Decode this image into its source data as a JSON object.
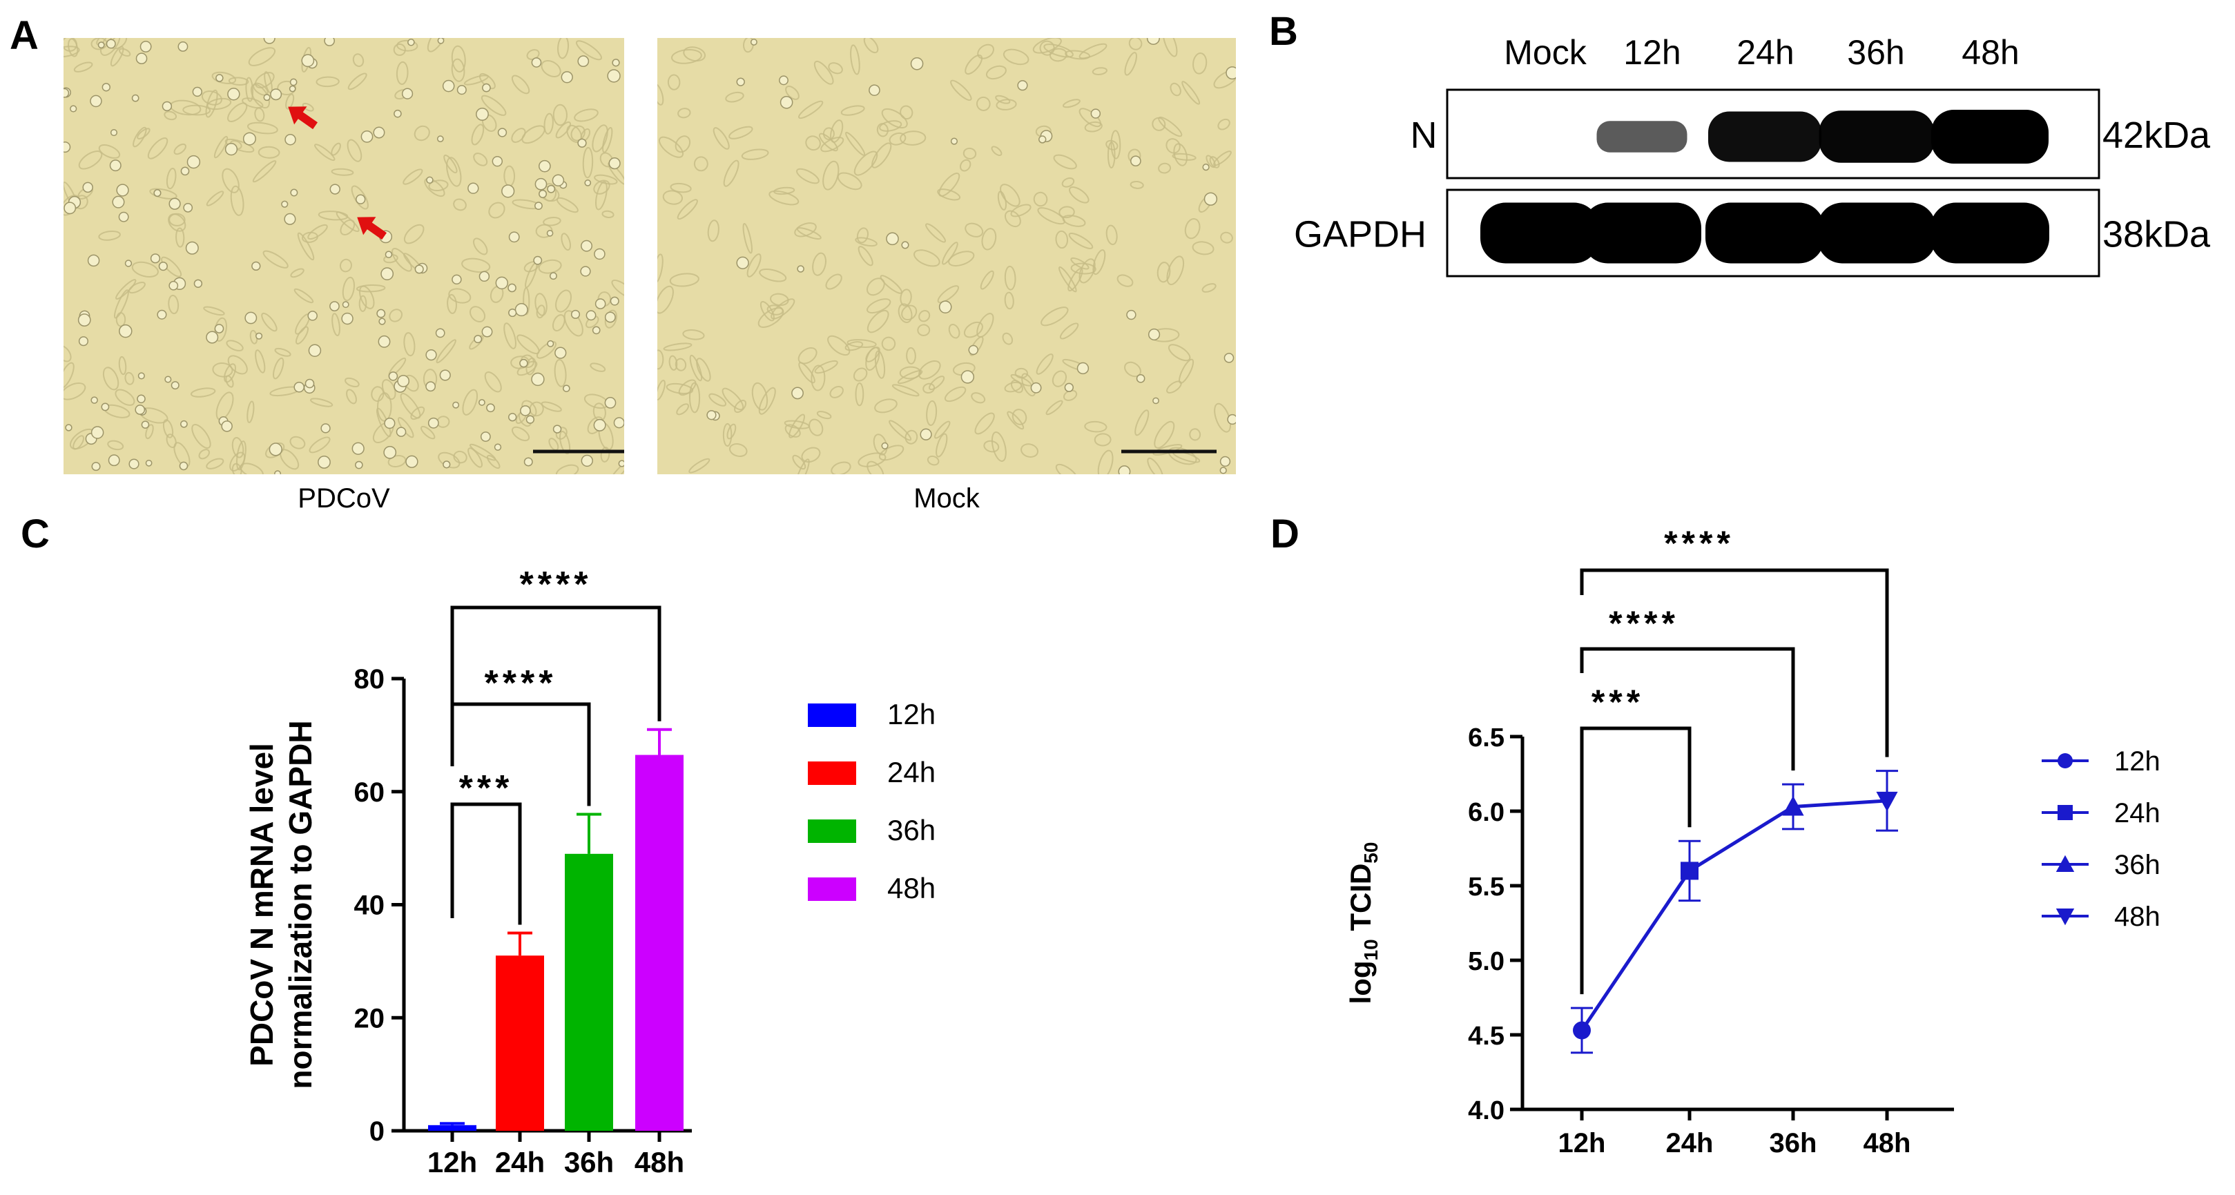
{
  "panels": {
    "a": {
      "letter": "A",
      "images": [
        {
          "caption": "PDCoV"
        },
        {
          "caption": "Mock"
        }
      ]
    },
    "b": {
      "letter": "B",
      "lanes": [
        "Mock",
        "12h",
        "24h",
        "36h",
        "48h"
      ],
      "rows": [
        {
          "label": "N",
          "kda": "42kDa",
          "intensity": [
            0,
            0.35,
            0.9,
            0.95,
            1.0
          ]
        },
        {
          "label": "GAPDH",
          "kda": "38kDa",
          "intensity": [
            1,
            1,
            1,
            1,
            1
          ]
        }
      ]
    },
    "c": {
      "letter": "C",
      "ylabel_line1": "PDCoV N mRNA level",
      "ylabel_line2": "normalization to GAPDH",
      "significance": [
        "***",
        "****",
        "****"
      ]
    },
    "d": {
      "letter": "D",
      "ylabel_main": "log",
      "ylabel_sub": "10",
      "ylabel_tail": " TCID",
      "ylabel_sub2": "50",
      "significance": [
        "***",
        "****",
        "****"
      ]
    }
  },
  "chart_data": [
    {
      "type": "bar",
      "categories": [
        "12h",
        "24h",
        "36h",
        "48h"
      ],
      "values": [
        1,
        31,
        49,
        66.5
      ],
      "errors": [
        0.3,
        4,
        7,
        4.5
      ],
      "colors": [
        "#0000ff",
        "#ff0000",
        "#00b400",
        "#cc00ff"
      ],
      "ylim": [
        0,
        80
      ],
      "yticks": [
        0,
        20,
        40,
        60,
        80
      ],
      "legend": [
        "12h",
        "24h",
        "36h",
        "48h"
      ],
      "comparisons": [
        {
          "from": "12h",
          "to": "24h",
          "label": "***"
        },
        {
          "from": "12h",
          "to": "36h",
          "label": "****"
        },
        {
          "from": "12h",
          "to": "48h",
          "label": "****"
        }
      ]
    },
    {
      "type": "line",
      "x": [
        "12h",
        "24h",
        "36h",
        "48h"
      ],
      "y": [
        4.53,
        5.6,
        6.03,
        6.07
      ],
      "errors": [
        0.15,
        0.2,
        0.15,
        0.2
      ],
      "markers": [
        "circle",
        "square",
        "triangle-up",
        "triangle-down"
      ],
      "color": "#1a1acc",
      "ylim": [
        4.0,
        6.5
      ],
      "yticks": [
        "4.0",
        "4.5",
        "5.0",
        "5.5",
        "6.0",
        "6.5"
      ],
      "legend": [
        "12h",
        "24h",
        "36h",
        "48h"
      ],
      "comparisons": [
        {
          "from": "12h",
          "to": "24h",
          "label": "***"
        },
        {
          "from": "12h",
          "to": "36h",
          "label": "****"
        },
        {
          "from": "12h",
          "to": "48h",
          "label": "****"
        }
      ]
    }
  ]
}
